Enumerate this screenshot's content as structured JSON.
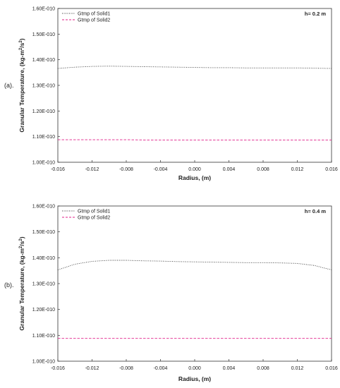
{
  "chart_data": [
    {
      "type": "line",
      "panel_label": "(a).",
      "annotation": "h= 0.2 m",
      "xlabel": "Radius, (m)",
      "ylabel_main": "Granular Temperature, (kg-m",
      "ylabel_sup": "2",
      "ylabel_mid": "/s",
      "ylabel_end": ")",
      "xlim": [
        -0.016,
        0.016
      ],
      "ylim": [
        1e-10,
        1.6e-10
      ],
      "x_ticks": [
        "-0.016",
        "-0.012",
        "-0.008",
        "-0.004",
        "0.000",
        "0.004",
        "0.008",
        "0.012",
        "0.016"
      ],
      "y_ticks": [
        "1.00E-010",
        "1.10E-010",
        "1.20E-010",
        "1.30E-010",
        "1.40E-010",
        "1.50E-010",
        "1.60E-010"
      ],
      "legend_position": "top-left",
      "x": [
        -0.016,
        -0.014,
        -0.012,
        -0.01,
        -0.008,
        -0.006,
        -0.004,
        -0.002,
        0.0,
        0.002,
        0.004,
        0.006,
        0.008,
        0.01,
        0.012,
        0.014,
        0.016
      ],
      "series": [
        {
          "name": "Gtmp of Solid1",
          "color": "#333333",
          "dash": "dotted",
          "values": [
            1.366e-10,
            1.371e-10,
            1.374e-10,
            1.375e-10,
            1.374e-10,
            1.373e-10,
            1.372e-10,
            1.371e-10,
            1.37e-10,
            1.369e-10,
            1.369e-10,
            1.368e-10,
            1.368e-10,
            1.368e-10,
            1.368e-10,
            1.367e-10,
            1.366e-10
          ]
        },
        {
          "name": "Gtmp of Solid2",
          "color": "#e0218a",
          "dash": "dashed",
          "values": [
            1.088e-10,
            1.088e-10,
            1.088e-10,
            1.088e-10,
            1.088e-10,
            1.087e-10,
            1.087e-10,
            1.087e-10,
            1.087e-10,
            1.087e-10,
            1.087e-10,
            1.087e-10,
            1.087e-10,
            1.087e-10,
            1.087e-10,
            1.087e-10,
            1.087e-10
          ]
        }
      ]
    },
    {
      "type": "line",
      "panel_label": "(b).",
      "annotation": "h= 0.4 m",
      "xlabel": "Radius, (m)",
      "ylabel_main": "Granular Temperature, (kg-m",
      "ylabel_sup": "2",
      "ylabel_mid": "/s",
      "ylabel_end": ")",
      "xlim": [
        -0.016,
        0.016
      ],
      "ylim": [
        1e-10,
        1.6e-10
      ],
      "x_ticks": [
        "-0.016",
        "-0.012",
        "-0.008",
        "-0.004",
        "0.000",
        "0.004",
        "0.008",
        "0.012",
        "0.016"
      ],
      "y_ticks": [
        "1.00E-010",
        "1.10E-010",
        "1.20E-010",
        "1.30E-010",
        "1.40E-010",
        "1.50E-010",
        "1.60E-010"
      ],
      "legend_position": "top-left",
      "x": [
        -0.016,
        -0.014,
        -0.012,
        -0.01,
        -0.008,
        -0.006,
        -0.004,
        -0.002,
        0.0,
        0.002,
        0.004,
        0.006,
        0.008,
        0.01,
        0.012,
        0.014,
        0.016
      ],
      "series": [
        {
          "name": "Gtmp of Solid1",
          "color": "#333333",
          "dash": "dotted",
          "values": [
            1.353e-10,
            1.375e-10,
            1.386e-10,
            1.39e-10,
            1.39e-10,
            1.388e-10,
            1.387e-10,
            1.385e-10,
            1.384e-10,
            1.383e-10,
            1.382e-10,
            1.381e-10,
            1.381e-10,
            1.38e-10,
            1.378e-10,
            1.37e-10,
            1.353e-10
          ]
        },
        {
          "name": "Gtmp of Solid2",
          "color": "#e0218a",
          "dash": "dashed",
          "values": [
            1.088e-10,
            1.088e-10,
            1.088e-10,
            1.088e-10,
            1.088e-10,
            1.088e-10,
            1.088e-10,
            1.088e-10,
            1.088e-10,
            1.088e-10,
            1.088e-10,
            1.088e-10,
            1.088e-10,
            1.088e-10,
            1.088e-10,
            1.088e-10,
            1.088e-10
          ]
        }
      ]
    }
  ]
}
